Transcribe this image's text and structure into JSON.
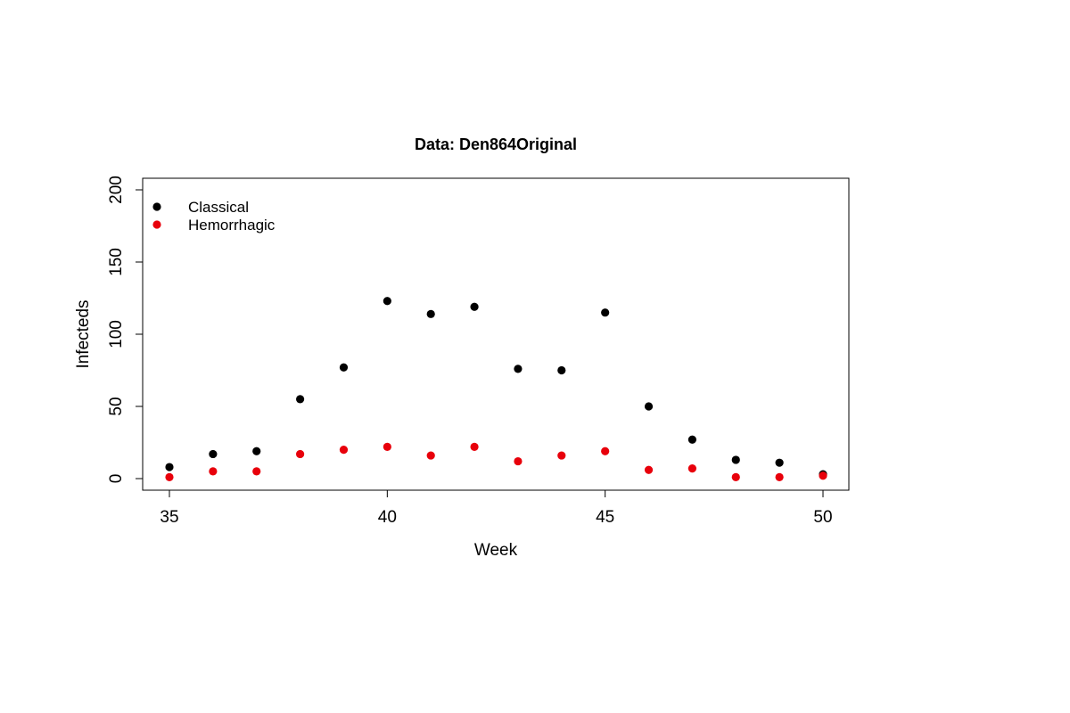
{
  "chart_data": {
    "type": "scatter",
    "title": "Data: Den864Original",
    "xlabel": "Week",
    "ylabel": "Infecteds",
    "xlim": [
      35,
      50
    ],
    "ylim": [
      0,
      200
    ],
    "x_ticks": [
      35,
      40,
      45,
      50
    ],
    "y_ticks": [
      0,
      50,
      100,
      150,
      200
    ],
    "grid": false,
    "legend_position": "top-left",
    "x": [
      35,
      36,
      37,
      38,
      39,
      40,
      41,
      42,
      43,
      44,
      45,
      46,
      47,
      48,
      49,
      50
    ],
    "series": [
      {
        "name": "Classical",
        "color": "#000000",
        "values": [
          8,
          17,
          19,
          55,
          77,
          123,
          114,
          119,
          76,
          75,
          115,
          50,
          27,
          13,
          11,
          3
        ]
      },
      {
        "name": "Hemorrhagic",
        "color": "#e8000b",
        "values": [
          1,
          5,
          5,
          17,
          20,
          22,
          16,
          22,
          12,
          16,
          19,
          6,
          7,
          1,
          1,
          2
        ]
      }
    ]
  }
}
